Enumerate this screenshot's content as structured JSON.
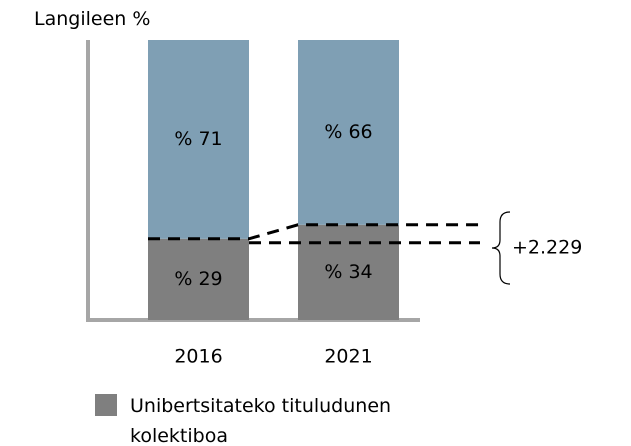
{
  "chart_data": {
    "type": "stacked_bar",
    "title": "Langileen %",
    "categories": [
      "2016",
      "2021"
    ],
    "series": [
      {
        "name": "Unibertsitateko tituludunen kolektiboa",
        "color": "#7f7f7f",
        "values": [
          29,
          34
        ],
        "value_labels": [
          "% 29",
          "% 34"
        ]
      },
      {
        "color": "#7f9fb4",
        "values": [
          71,
          66
        ],
        "value_labels": [
          "% 71",
          "% 66"
        ]
      }
    ],
    "ylim": [
      0,
      100
    ],
    "annotation": "+2.229",
    "legend": "bottom-left"
  }
}
